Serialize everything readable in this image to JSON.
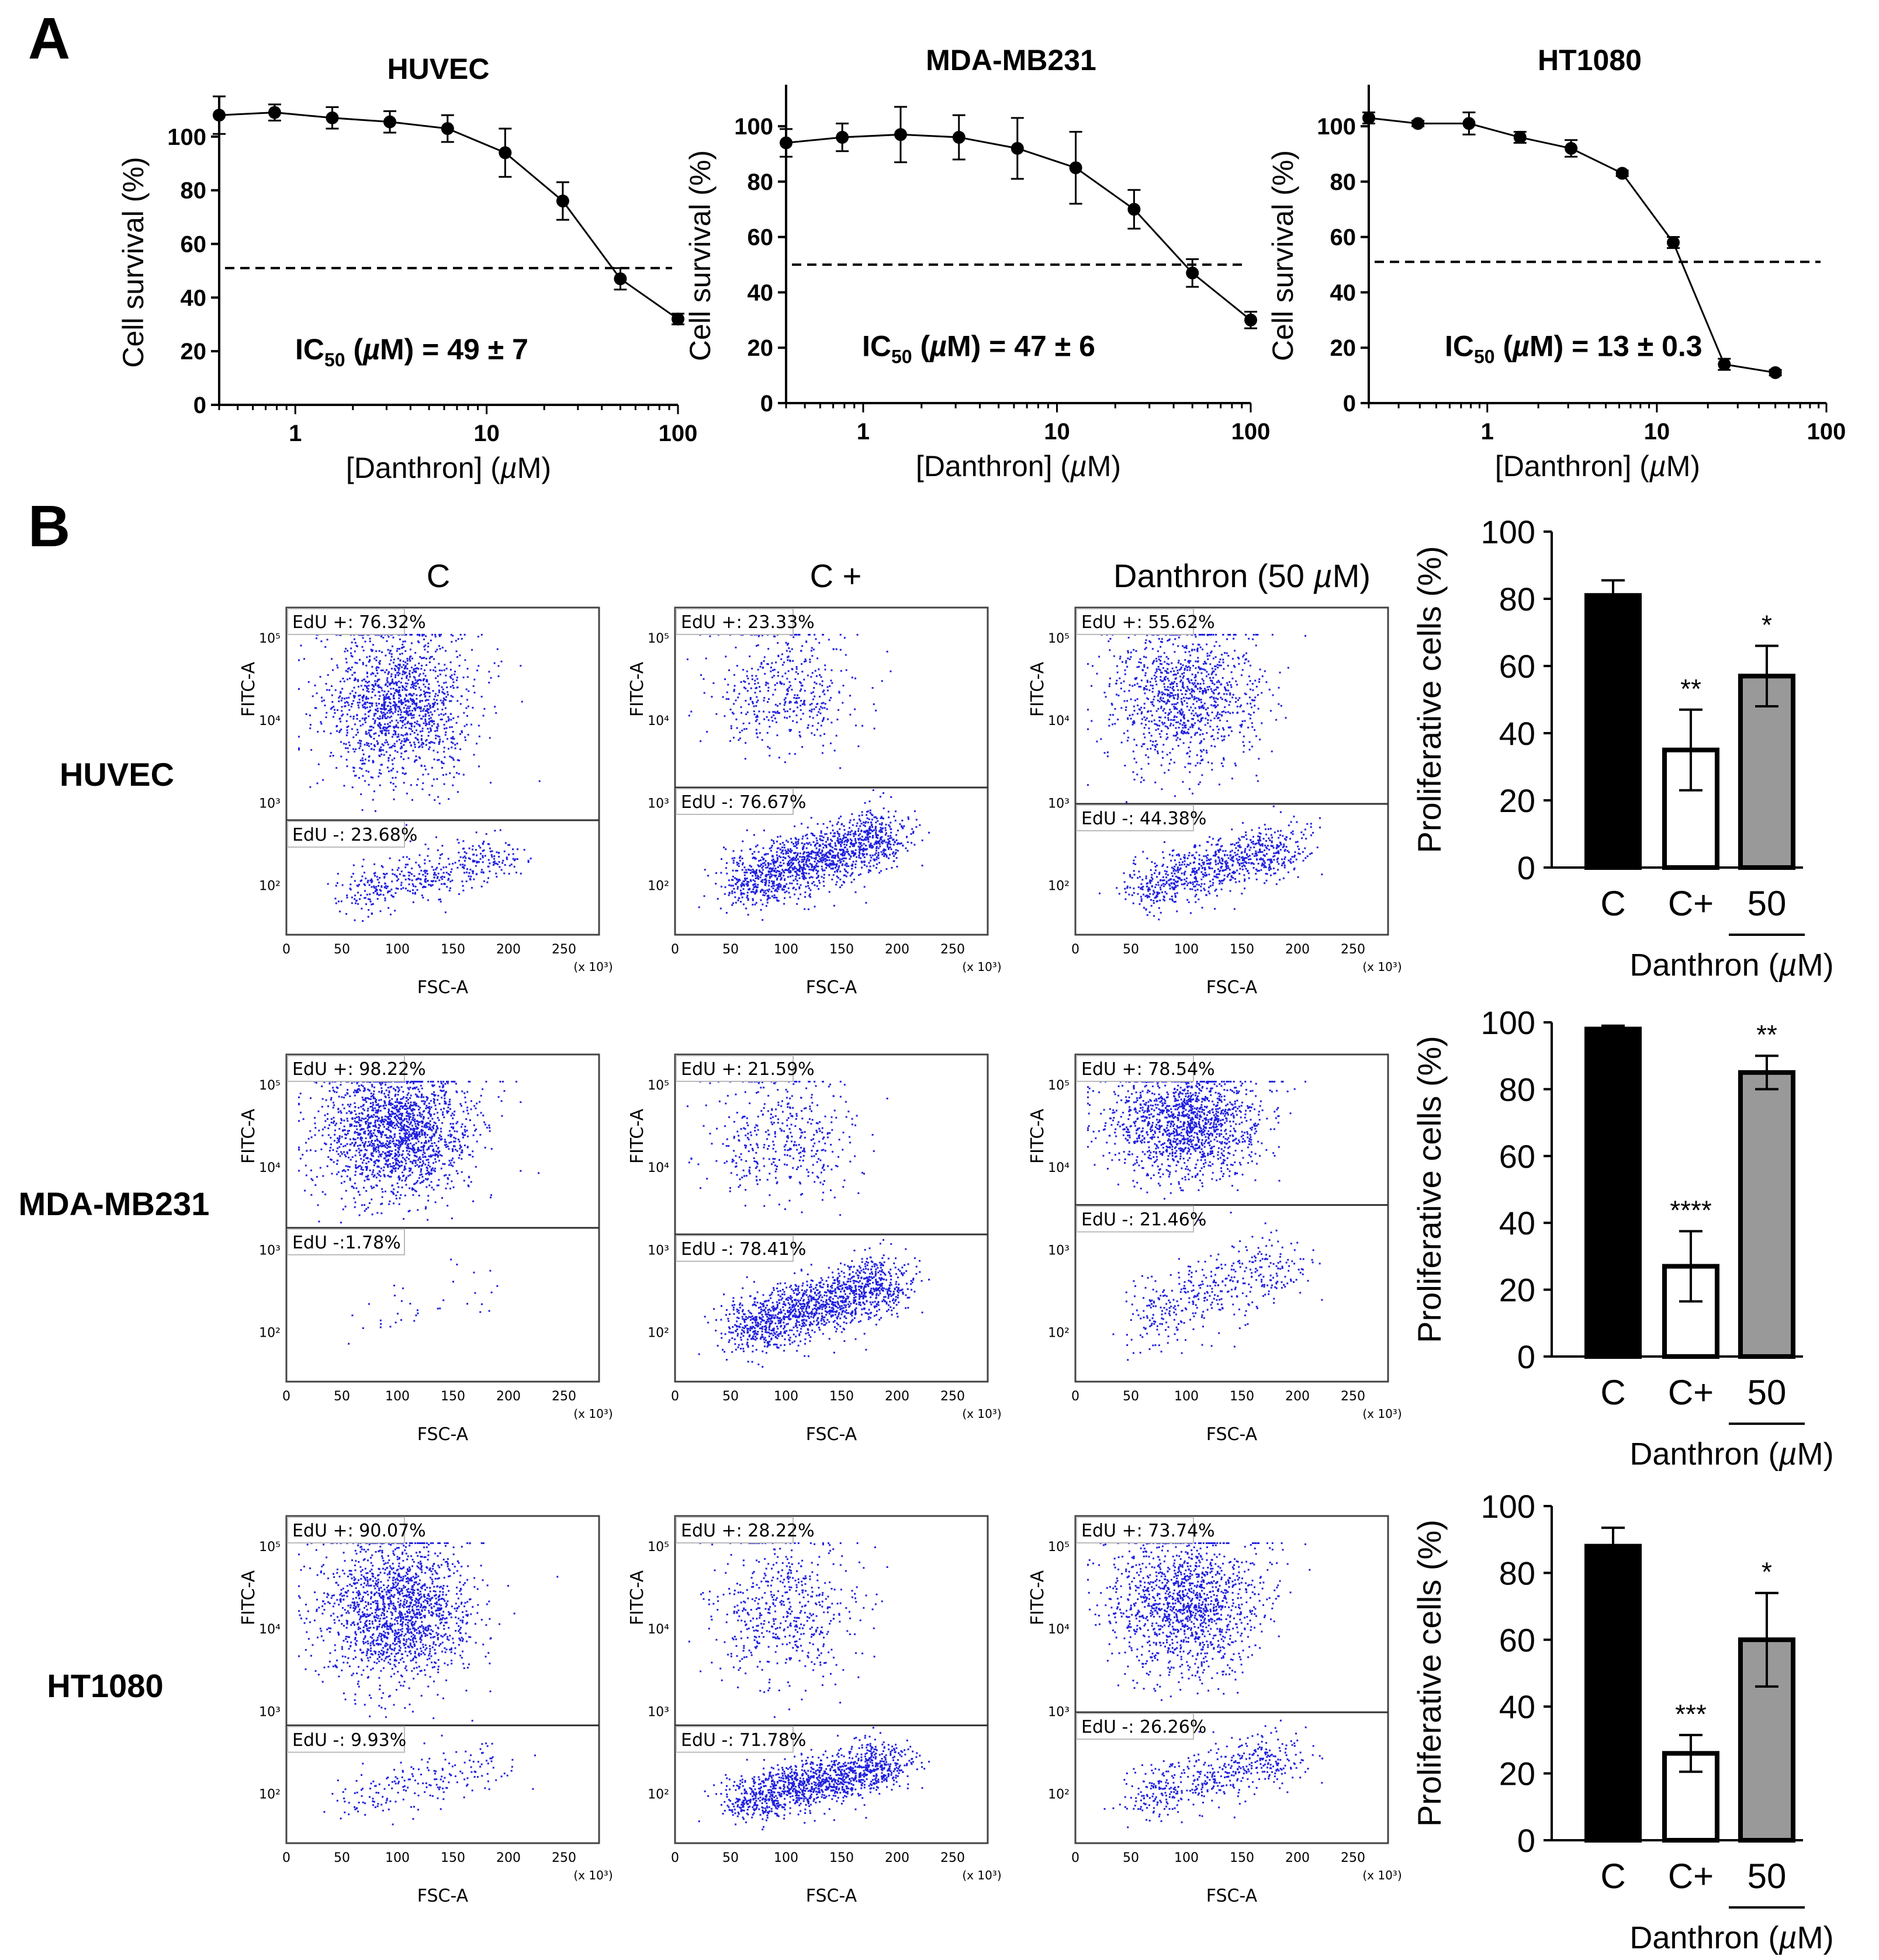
{
  "panels": {
    "a": "A",
    "b": "B"
  },
  "chart_data": [
    {
      "type": "line",
      "id": "ic50-huvec",
      "title": "HUVEC",
      "xlabel": "[Danthron] (µM)",
      "ylabel": "Cell survival (%)",
      "xscale": "log",
      "xlim": [
        0.4,
        100
      ],
      "ylim": [
        0,
        115
      ],
      "xticks": [
        1,
        10,
        100
      ],
      "yticks": [
        0,
        20,
        40,
        60,
        80,
        100
      ],
      "reference_line": 51,
      "annotation": {
        "main": "IC",
        "sub": "50",
        "rest": " (µM) = 49 ± 7"
      },
      "x": [
        0.4,
        0.78,
        1.56,
        3.12,
        6.25,
        12.5,
        25,
        50,
        100
      ],
      "y": [
        108,
        109,
        107,
        105.5,
        103,
        94,
        76,
        47,
        32
      ],
      "error": [
        7,
        3,
        4,
        4,
        5,
        9,
        7,
        4,
        2
      ]
    },
    {
      "type": "line",
      "id": "ic50-mda",
      "title": "MDA-MB231",
      "xlabel": "[Danthron] (µM)",
      "ylabel": "Cell survival (%)",
      "xscale": "log",
      "xlim": [
        0.4,
        100
      ],
      "ylim": [
        0,
        115
      ],
      "xticks": [
        1,
        10,
        100
      ],
      "yticks": [
        0,
        20,
        40,
        60,
        80,
        100
      ],
      "reference_line": 50,
      "annotation": {
        "main": "IC",
        "sub": "50",
        "rest": " (µM) = 47 ± 6"
      },
      "x": [
        0.4,
        0.78,
        1.56,
        3.12,
        6.25,
        12.5,
        25,
        50,
        100
      ],
      "y": [
        94,
        96,
        97,
        96,
        92,
        85,
        70,
        47,
        30
      ],
      "error": [
        5,
        5,
        10,
        8,
        11,
        13,
        7,
        5,
        3
      ]
    },
    {
      "type": "line",
      "id": "ic50-ht1080",
      "title": "HT1080",
      "xlabel": "[Danthron] (µM)",
      "ylabel": "Cell survival (%)",
      "xscale": "log",
      "xlim": [
        0.2,
        100
      ],
      "ylim": [
        0,
        115
      ],
      "xticks": [
        1,
        10,
        100
      ],
      "yticks": [
        0,
        20,
        40,
        60,
        80,
        100
      ],
      "reference_line": 51,
      "annotation": {
        "main": "IC",
        "sub": "50",
        "rest": " (µM) = 13 ± 0.3"
      },
      "x": [
        0.2,
        0.39,
        0.78,
        1.56,
        3.12,
        6.25,
        12.5,
        25,
        50
      ],
      "y": [
        103,
        101,
        101,
        96,
        92,
        83,
        58,
        14,
        11
      ],
      "error": [
        2,
        1,
        4,
        2,
        3,
        1,
        2,
        2,
        1
      ]
    },
    {
      "type": "bar",
      "id": "prolif-huvec",
      "ylabel": "Proliferative cells (%)",
      "ylim": [
        0,
        100
      ],
      "yticks": [
        0,
        20,
        40,
        60,
        80,
        100
      ],
      "categories": [
        "C",
        "C+",
        "50"
      ],
      "group_label": "Danthron (µM)",
      "values": [
        81,
        35,
        57
      ],
      "error": [
        4.5,
        12,
        9
      ],
      "significance": [
        "",
        "**",
        "*"
      ],
      "fills": [
        "#000000",
        "#ffffff",
        "#999999"
      ]
    },
    {
      "type": "bar",
      "id": "prolif-mda",
      "ylabel": "Proliferative cells (%)",
      "ylim": [
        0,
        100
      ],
      "yticks": [
        0,
        20,
        40,
        60,
        80,
        100
      ],
      "categories": [
        "C",
        "C+",
        "50"
      ],
      "group_label": "Danthron (µM)",
      "values": [
        98,
        27,
        85
      ],
      "error": [
        1,
        10.5,
        5
      ],
      "significance": [
        "",
        "****",
        "**"
      ],
      "fills": [
        "#000000",
        "#ffffff",
        "#999999"
      ]
    },
    {
      "type": "bar",
      "id": "prolif-ht1080",
      "ylabel": "Proliferative cells (%)",
      "ylim": [
        0,
        100
      ],
      "yticks": [
        0,
        20,
        40,
        60,
        80,
        100
      ],
      "categories": [
        "C",
        "C+",
        "50"
      ],
      "group_label": "Danthron (µM)",
      "values": [
        88,
        26,
        60
      ],
      "error": [
        5.5,
        5.5,
        14
      ],
      "significance": [
        "",
        "***",
        "*"
      ],
      "fills": [
        "#000000",
        "#ffffff",
        "#999999"
      ]
    }
  ],
  "flow": {
    "column_titles": [
      "C",
      "C +",
      "Danthron (50 µM)"
    ],
    "row_labels": [
      "HUVEC",
      "MDA-MB231",
      "HT1080"
    ],
    "xlabel": "FSC-A",
    "ylabel": "FITC-A",
    "x_unit": "(x 10³)",
    "x_ticks": [
      "0",
      "50",
      "100",
      "150",
      "200",
      "250"
    ],
    "y_ticks": [
      "10⁵",
      "10⁴",
      "10³",
      "10²"
    ],
    "dot_color": "#1f1fe0",
    "plots": [
      {
        "row": 0,
        "col": 0,
        "pos": "EdU +: 76.32%",
        "neg": "EdU -: 23.68%",
        "gate_frac": 0.65
      },
      {
        "row": 0,
        "col": 1,
        "pos": "EdU +: 23.33%",
        "neg": "EdU -: 76.67%",
        "gate_frac": 0.55
      },
      {
        "row": 0,
        "col": 2,
        "pos": "EdU +: 55.62%",
        "neg": "EdU -: 44.38%",
        "gate_frac": 0.6
      },
      {
        "row": 1,
        "col": 0,
        "pos": "EdU +: 98.22%",
        "neg": "EdU -:1.78%",
        "gate_frac": 0.53
      },
      {
        "row": 1,
        "col": 1,
        "pos": "EdU +: 21.59%",
        "neg": "EdU -: 78.41%",
        "gate_frac": 0.55
      },
      {
        "row": 1,
        "col": 2,
        "pos": "EdU +: 78.54%",
        "neg": "EdU -: 21.46%",
        "gate_frac": 0.46
      },
      {
        "row": 2,
        "col": 0,
        "pos": "EdU +: 90.07%",
        "neg": "EdU -: 9.93%",
        "gate_frac": 0.64
      },
      {
        "row": 2,
        "col": 1,
        "pos": "EdU +: 28.22%",
        "neg": "EdU -: 71.78%",
        "gate_frac": 0.64
      },
      {
        "row": 2,
        "col": 2,
        "pos": "EdU +: 73.74%",
        "neg": "EdU -: 26.26%",
        "gate_frac": 0.6
      }
    ]
  }
}
